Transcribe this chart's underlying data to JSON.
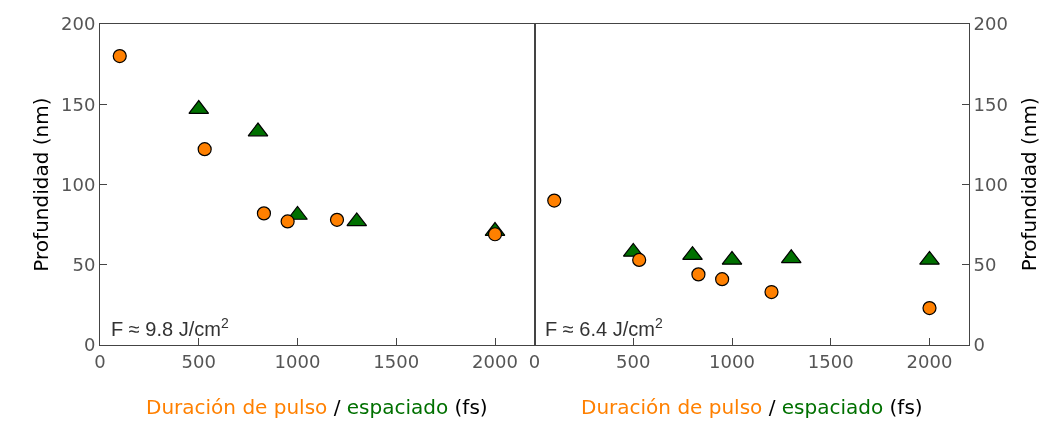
{
  "chart_data": [
    {
      "type": "scatter",
      "xlabel": "Duración de pulso / espaciado (fs)",
      "ylabel": "Profundidad (nm)",
      "xlim": [
        0,
        2200
      ],
      "xticks": [
        0,
        500,
        1000,
        1500,
        2000
      ],
      "ylim": [
        0,
        200
      ],
      "yticks": [
        0,
        50,
        100,
        150,
        200
      ],
      "annotations": [
        "F ≈ 9.8 J/cm$^{2}$"
      ],
      "series": [
        {
          "color": "#ff8000",
          "marker": "circle",
          "x": [
            100,
            530,
            830,
            950,
            1200,
            2000
          ],
          "values": [
            180,
            122,
            82,
            77,
            78,
            69
          ]
        },
        {
          "color": "#007000",
          "marker": "triangle",
          "x": [
            500,
            800,
            1000,
            1300,
            2000
          ],
          "values": [
            147,
            133,
            81,
            77,
            71
          ]
        }
      ]
    },
    {
      "type": "scatter",
      "xlabel": "Duración de pulso / espaciado (fs)",
      "ylabel": "Profundidad (nm)",
      "xlim": [
        0,
        2200
      ],
      "xticks": [
        0,
        500,
        1000,
        1500,
        2000
      ],
      "ylim": [
        0,
        200
      ],
      "yticks": [
        0,
        50,
        100,
        150,
        200
      ],
      "annotations": [
        "F ≈ 6.4 J/cm$^{2}$"
      ],
      "series": [
        {
          "color": "#ff8000",
          "marker": "circle",
          "x": [
            100,
            530,
            830,
            950,
            1200,
            2000
          ],
          "values": [
            90,
            53,
            44,
            41,
            33,
            23
          ]
        },
        {
          "color": "#007000",
          "marker": "triangle",
          "x": [
            500,
            800,
            1000,
            1300,
            2000
          ],
          "values": [
            58,
            56,
            53,
            54,
            53
          ]
        }
      ]
    }
  ]
}
